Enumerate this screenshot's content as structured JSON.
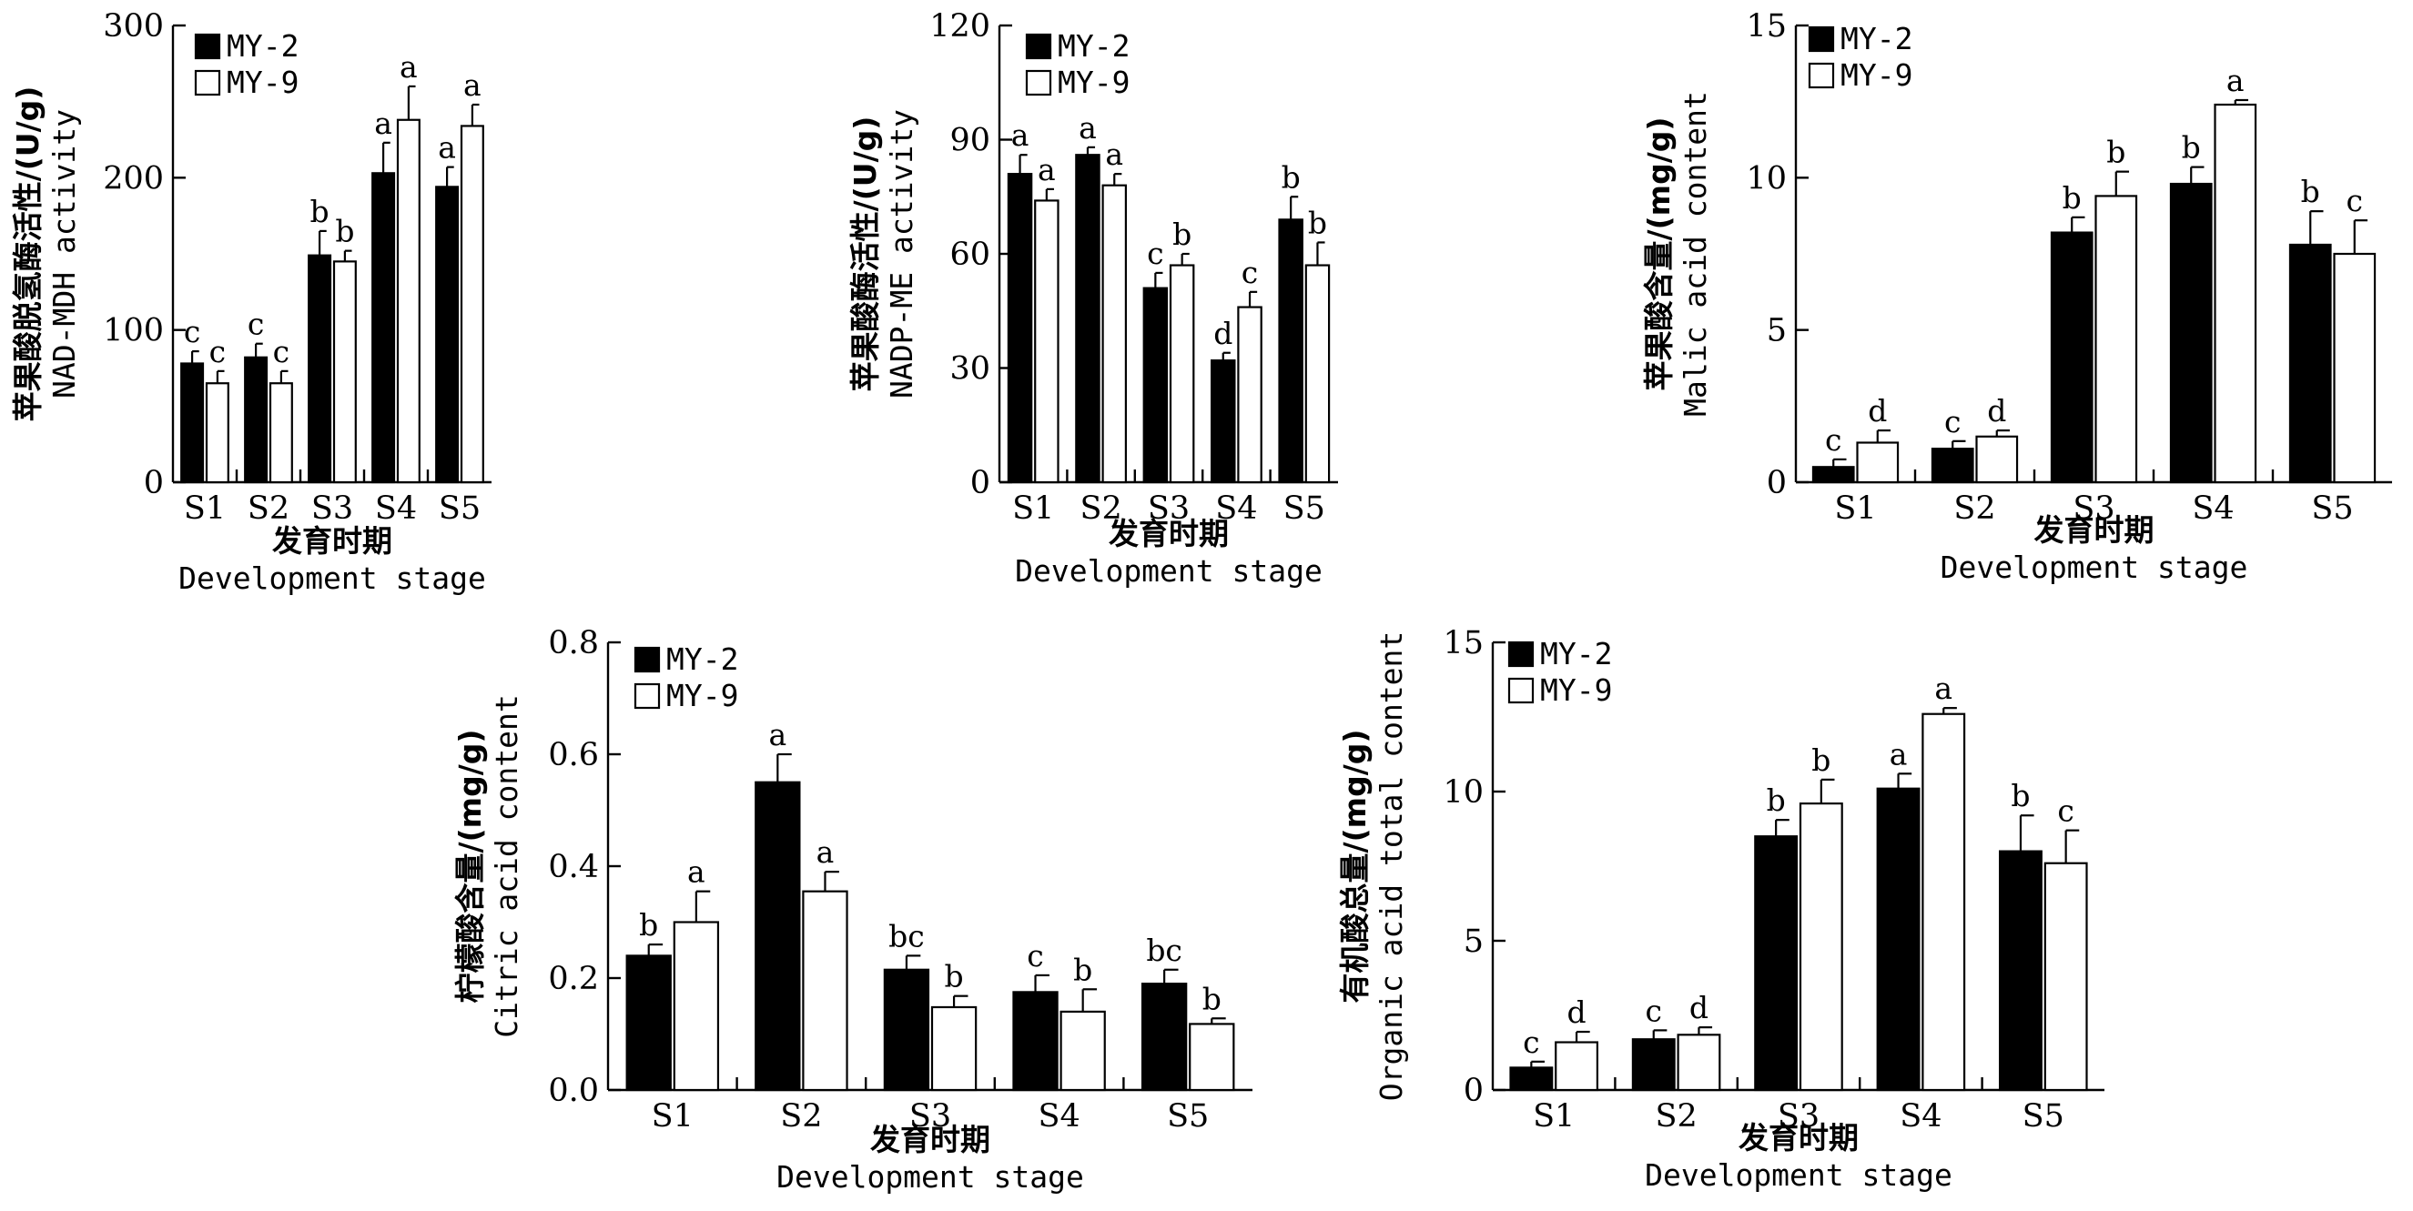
{
  "chart_data": [
    {
      "id": "p1",
      "type": "bar",
      "title": "",
      "ylabel_cn": "苹果酸脱氢酶活性/(U/g)",
      "ylabel_en": "NAD-MDH activity",
      "xlabel_cn": "发育时期",
      "xlabel_en": "Development stage",
      "categories": [
        "S1",
        "S2",
        "S3",
        "S4",
        "S5"
      ],
      "ylim": [
        0,
        300
      ],
      "yticks": [
        0,
        100,
        200,
        300
      ],
      "ytick_labels": [
        "0",
        "100",
        "200",
        "300"
      ],
      "legend_position": "top-left",
      "series": [
        {
          "name": "MY-2",
          "fill": "#000000",
          "values": [
            78,
            82,
            149,
            203,
            194
          ],
          "errors": [
            8,
            9,
            16,
            20,
            13
          ],
          "sig": [
            "c",
            "c",
            "b",
            "a",
            "a"
          ]
        },
        {
          "name": "MY-9",
          "fill": "#ffffff",
          "values": [
            65,
            65,
            145,
            238,
            234
          ],
          "errors": [
            8,
            8,
            7,
            22,
            14
          ],
          "sig": [
            "c",
            "c",
            "b",
            "a",
            "a"
          ]
        }
      ]
    },
    {
      "id": "p2",
      "type": "bar",
      "title": "",
      "ylabel_cn": "苹果酸酶活性/(U/g)",
      "ylabel_en": "NADP-ME activity",
      "xlabel_cn": "发育时期",
      "xlabel_en": "Development stage",
      "categories": [
        "S1",
        "S2",
        "S3",
        "S4",
        "S5"
      ],
      "ylim": [
        0,
        120
      ],
      "yticks": [
        0,
        30,
        60,
        90,
        120
      ],
      "ytick_labels": [
        "0",
        "30",
        "60",
        "90",
        "120"
      ],
      "legend_position": "top-left",
      "series": [
        {
          "name": "MY-2",
          "fill": "#000000",
          "values": [
            81,
            86,
            51,
            32,
            69
          ],
          "errors": [
            5,
            2,
            4,
            2,
            6
          ],
          "sig": [
            "a",
            "a",
            "c",
            "d",
            "b"
          ]
        },
        {
          "name": "MY-9",
          "fill": "#ffffff",
          "values": [
            74,
            78,
            57,
            46,
            57
          ],
          "errors": [
            3,
            3,
            3,
            4,
            6
          ],
          "sig": [
            "a",
            "a",
            "b",
            "c",
            "b"
          ]
        }
      ]
    },
    {
      "id": "p3",
      "type": "bar",
      "title": "",
      "ylabel_cn": "苹果酸含量/(mg/g)",
      "ylabel_en": "Malic acid content",
      "xlabel_cn": "发育时期",
      "xlabel_en": "Development stage",
      "categories": [
        "S1",
        "S2",
        "S3",
        "S4",
        "S5"
      ],
      "ylim": [
        0,
        15
      ],
      "yticks": [
        0,
        5,
        10,
        15
      ],
      "ytick_labels": [
        "0",
        "5",
        "10",
        "15"
      ],
      "legend_position": "top-left",
      "series": [
        {
          "name": "MY-2",
          "fill": "#000000",
          "values": [
            0.5,
            1.1,
            8.2,
            9.8,
            7.8
          ],
          "errors": [
            0.25,
            0.25,
            0.5,
            0.55,
            1.1
          ],
          "sig": [
            "c",
            "c",
            "b",
            "b",
            "b"
          ]
        },
        {
          "name": "MY-9",
          "fill": "#ffffff",
          "values": [
            1.3,
            1.5,
            9.4,
            12.4,
            7.5
          ],
          "errors": [
            0.4,
            0.2,
            0.8,
            0.15,
            1.1
          ],
          "sig": [
            "d",
            "d",
            "b",
            "a",
            "c"
          ]
        }
      ]
    },
    {
      "id": "p4",
      "type": "bar",
      "title": "",
      "ylabel_cn": "柠檬酸含量/(mg/g)",
      "ylabel_en": "Citric acid content",
      "xlabel_cn": "发育时期",
      "xlabel_en": "Development stage",
      "categories": [
        "S1",
        "S2",
        "S3",
        "S4",
        "S5"
      ],
      "ylim": [
        0,
        0.8
      ],
      "yticks": [
        0,
        0.2,
        0.4,
        0.6,
        0.8
      ],
      "ytick_labels": [
        "0.0",
        "0.2",
        "0.4",
        "0.6",
        "0.8"
      ],
      "legend_position": "top-left",
      "series": [
        {
          "name": "MY-2",
          "fill": "#000000",
          "values": [
            0.24,
            0.55,
            0.215,
            0.175,
            0.19
          ],
          "errors": [
            0.02,
            0.05,
            0.025,
            0.03,
            0.025
          ],
          "sig": [
            "b",
            "a",
            "bc",
            "c",
            "bc"
          ]
        },
        {
          "name": "MY-9",
          "fill": "#ffffff",
          "values": [
            0.3,
            0.355,
            0.148,
            0.14,
            0.118
          ],
          "errors": [
            0.055,
            0.035,
            0.02,
            0.04,
            0.01
          ],
          "sig": [
            "a",
            "a",
            "b",
            "b",
            "b"
          ]
        }
      ]
    },
    {
      "id": "p5",
      "type": "bar",
      "title": "",
      "ylabel_cn": "有机酸总量/(mg/g)",
      "ylabel_en": "Organic acid total content",
      "xlabel_cn": "发育时期",
      "xlabel_en": "Development stage",
      "categories": [
        "S1",
        "S2",
        "S3",
        "S4",
        "S5"
      ],
      "ylim": [
        0,
        15
      ],
      "yticks": [
        0,
        5,
        10,
        15
      ],
      "ytick_labels": [
        "0",
        "5",
        "10",
        "15"
      ],
      "legend_position": "top-left",
      "series": [
        {
          "name": "MY-2",
          "fill": "#000000",
          "values": [
            0.75,
            1.7,
            8.5,
            10.1,
            8.0
          ],
          "errors": [
            0.2,
            0.3,
            0.55,
            0.5,
            1.2
          ],
          "sig": [
            "c",
            "c",
            "b",
            "a",
            "b"
          ]
        },
        {
          "name": "MY-9",
          "fill": "#ffffff",
          "values": [
            1.6,
            1.85,
            9.6,
            12.6,
            7.6
          ],
          "errors": [
            0.35,
            0.25,
            0.8,
            0.2,
            1.1
          ],
          "sig": [
            "d",
            "d",
            "b",
            "a",
            "c"
          ]
        }
      ]
    }
  ]
}
